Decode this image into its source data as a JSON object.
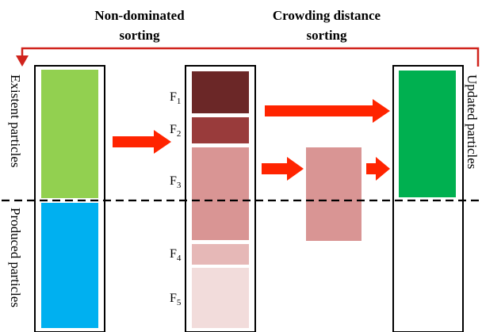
{
  "headers": {
    "nondominated_line1": "Non-dominated",
    "nondominated_line2": "sorting",
    "crowding_line1": "Crowding distance",
    "crowding_line2": "sorting"
  },
  "side_labels": {
    "existent": "Existent particles",
    "produced": "Produced particles",
    "updated": "Updated particles"
  },
  "fronts": [
    {
      "letter": "F",
      "index": "1"
    },
    {
      "letter": "F",
      "index": "2"
    },
    {
      "letter": "F",
      "index": "3"
    },
    {
      "letter": "F",
      "index": "4"
    },
    {
      "letter": "F",
      "index": "5"
    }
  ],
  "colors": {
    "existent_fill": "#92d050",
    "produced_fill": "#00b0f0",
    "updated_fill": "#00b050",
    "front1": "#6b2727",
    "front2": "#993b3b",
    "front3": "#d99594",
    "front4": "#e6b8b7",
    "front5": "#f2dcdb",
    "crowding_block": "#d99594",
    "arrow": "#ff2400",
    "feedback_arrow": "#d0231c",
    "outline": "#000000"
  }
}
